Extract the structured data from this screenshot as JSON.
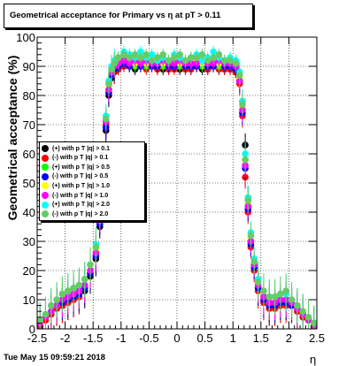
{
  "title": "Geometrical acceptance for Primary vs   η at pT > 0.11",
  "footer": "Tue May 15 09:59:21 2018",
  "chart_data": {
    "type": "scatter",
    "title": "Geometrical acceptance for Primary vs   η at pT > 0.11",
    "xlabel": "η",
    "ylabel": "Geometrical acceptance (%)",
    "xlim": [
      -2.5,
      2.5
    ],
    "ylim": [
      0,
      100
    ],
    "x_ticks": [
      "-2.5",
      "-2",
      "-1.5",
      "-1",
      "-0.5",
      "0",
      "0.5",
      "1",
      "1.5",
      "2",
      "2.5"
    ],
    "y_ticks": [
      "0",
      "10",
      "20",
      "30",
      "40",
      "50",
      "60",
      "70",
      "80",
      "90",
      "100"
    ],
    "grid": true,
    "legend_position": "middle-left",
    "x": [
      -2.45,
      -2.35,
      -2.25,
      -2.15,
      -2.05,
      -1.95,
      -1.85,
      -1.75,
      -1.65,
      -1.55,
      -1.45,
      -1.38,
      -1.32,
      -1.27,
      -1.22,
      -1.17,
      -1.12,
      -1.05,
      -0.95,
      -0.85,
      -0.75,
      -0.65,
      -0.55,
      -0.45,
      -0.35,
      -0.25,
      -0.15,
      -0.05,
      0.05,
      0.15,
      0.25,
      0.35,
      0.45,
      0.55,
      0.65,
      0.75,
      0.85,
      0.95,
      1.05,
      1.12,
      1.17,
      1.22,
      1.27,
      1.32,
      1.38,
      1.45,
      1.55,
      1.65,
      1.75,
      1.85,
      1.95,
      2.05,
      2.15,
      2.25,
      2.35,
      2.45
    ],
    "series": [
      {
        "name": "(+) with p T |q| > 0.1",
        "color": "#000000",
        "values": [
          1,
          3,
          5,
          7,
          8,
          9,
          10,
          11,
          13,
          18,
          24,
          35,
          50,
          68,
          80,
          86,
          88,
          89,
          90,
          90,
          89,
          90,
          90,
          90,
          89,
          89,
          89,
          90,
          89,
          89,
          89,
          90,
          89,
          89,
          90,
          89,
          89,
          89,
          88,
          85,
          78,
          63,
          45,
          30,
          22,
          14,
          9,
          7,
          7,
          8,
          9,
          8,
          6,
          4,
          3,
          1
        ]
      },
      {
        "name": "(-) with p T |q| > 0.1",
        "color": "#ff0000",
        "values": [
          1,
          3,
          5,
          7,
          8,
          9,
          10,
          11,
          14,
          19,
          25,
          36,
          52,
          70,
          81,
          87,
          88,
          89,
          90,
          90,
          90,
          90,
          89,
          90,
          89,
          90,
          89,
          89,
          90,
          89,
          89,
          90,
          90,
          89,
          90,
          89,
          89,
          89,
          88,
          84,
          73,
          52,
          40,
          28,
          20,
          13,
          9,
          7,
          7,
          8,
          8,
          8,
          6,
          4,
          3,
          1
        ]
      },
      {
        "name": "(+) with p T |q| > 0.5",
        "color": "#00ff00",
        "values": [
          2,
          4,
          6,
          8,
          9,
          10,
          11,
          12,
          14,
          19,
          26,
          37,
          53,
          71,
          82,
          87,
          89,
          90,
          91,
          91,
          90,
          91,
          90,
          91,
          90,
          90,
          90,
          91,
          90,
          90,
          90,
          91,
          90,
          90,
          91,
          90,
          90,
          90,
          89,
          86,
          76,
          58,
          42,
          30,
          21,
          14,
          10,
          8,
          8,
          9,
          9,
          8,
          7,
          5,
          3,
          1
        ]
      },
      {
        "name": "(-) with p T |q| > 0.5",
        "color": "#0000ff",
        "values": [
          2,
          4,
          6,
          8,
          9,
          10,
          11,
          12,
          14,
          19,
          25,
          36,
          52,
          69,
          81,
          87,
          89,
          90,
          91,
          90,
          91,
          90,
          91,
          90,
          90,
          91,
          90,
          90,
          91,
          90,
          90,
          90,
          91,
          90,
          90,
          91,
          90,
          90,
          89,
          85,
          74,
          55,
          41,
          29,
          21,
          14,
          10,
          8,
          8,
          9,
          9,
          8,
          7,
          5,
          3,
          1
        ]
      },
      {
        "name": "(+) with p T |q| > 1.0",
        "color": "#ffff00",
        "values": [
          2,
          4,
          6,
          8,
          10,
          11,
          12,
          13,
          15,
          20,
          27,
          38,
          55,
          72,
          83,
          88,
          90,
          91,
          92,
          92,
          91,
          92,
          91,
          92,
          91,
          91,
          91,
          92,
          91,
          91,
          91,
          92,
          91,
          91,
          92,
          91,
          91,
          91,
          90,
          86,
          76,
          58,
          43,
          31,
          22,
          15,
          11,
          9,
          9,
          10,
          10,
          9,
          7,
          5,
          3,
          1
        ]
      },
      {
        "name": "(-) with p T |q| > 1.0",
        "color": "#ff00ff",
        "values": [
          2,
          4,
          6,
          8,
          10,
          11,
          12,
          13,
          15,
          20,
          26,
          37,
          54,
          71,
          82,
          88,
          90,
          91,
          92,
          91,
          92,
          91,
          92,
          91,
          91,
          92,
          91,
          91,
          92,
          91,
          91,
          91,
          92,
          91,
          91,
          92,
          91,
          91,
          90,
          85,
          75,
          56,
          42,
          30,
          22,
          15,
          11,
          9,
          9,
          10,
          10,
          9,
          7,
          5,
          3,
          1
        ]
      },
      {
        "name": "(+) with p T |q| > 2.0",
        "color": "#00ffff",
        "values": [
          3,
          5,
          8,
          10,
          12,
          13,
          14,
          15,
          17,
          22,
          29,
          40,
          57,
          73,
          85,
          90,
          92,
          93,
          95,
          94,
          93,
          95,
          93,
          94,
          92,
          93,
          92,
          94,
          93,
          92,
          93,
          94,
          92,
          93,
          95,
          93,
          92,
          93,
          92,
          88,
          78,
          60,
          45,
          33,
          24,
          17,
          13,
          11,
          11,
          12,
          12,
          10,
          8,
          6,
          4,
          2
        ]
      },
      {
        "name": "(-) with p T |q| > 2.0",
        "color": "#66cc66",
        "values": [
          3,
          5,
          8,
          10,
          12,
          13,
          14,
          15,
          17,
          22,
          28,
          39,
          56,
          72,
          84,
          89,
          91,
          93,
          94,
          93,
          94,
          93,
          94,
          92,
          93,
          94,
          92,
          93,
          94,
          92,
          93,
          93,
          94,
          92,
          93,
          94,
          92,
          92,
          91,
          87,
          77,
          58,
          44,
          32,
          23,
          16,
          13,
          11,
          11,
          12,
          13,
          10,
          8,
          6,
          4,
          2
        ]
      }
    ]
  }
}
